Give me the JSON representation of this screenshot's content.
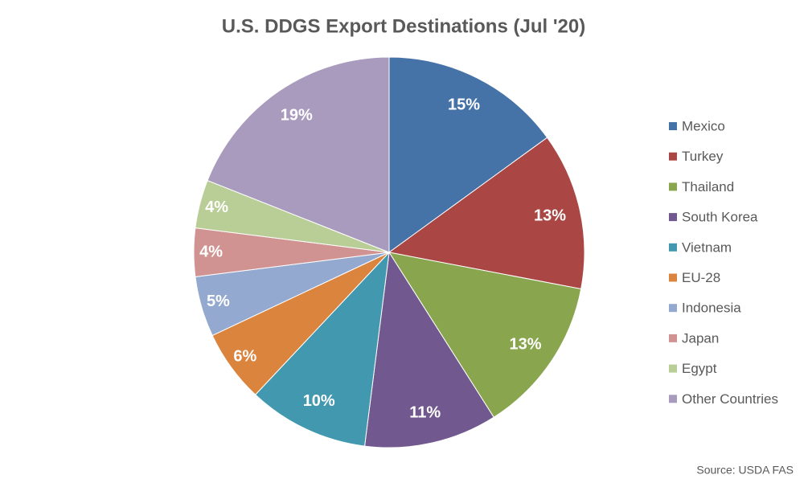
{
  "chart_data": {
    "type": "pie",
    "title": "U.S. DDGS Export Destinations (Jul '20)",
    "categories": [
      "Mexico",
      "Turkey",
      "Thailand",
      "South Korea",
      "Vietnam",
      "EU-28",
      "Indonesia",
      "Japan",
      "Egypt",
      "Other Countries"
    ],
    "values": [
      15,
      13,
      13,
      11,
      10,
      6,
      5,
      4,
      4,
      19
    ],
    "value_labels": [
      "15%",
      "13%",
      "13%",
      "11%",
      "10%",
      "6%",
      "5%",
      "4%",
      "4%",
      "19%"
    ],
    "colors": [
      "#4572a7",
      "#aa4643",
      "#89a54e",
      "#71588f",
      "#4198af",
      "#db843d",
      "#93a9cf",
      "#d19392",
      "#b9cd96",
      "#a99bbd"
    ],
    "legend": "right",
    "source": "Source: USDA FAS"
  }
}
